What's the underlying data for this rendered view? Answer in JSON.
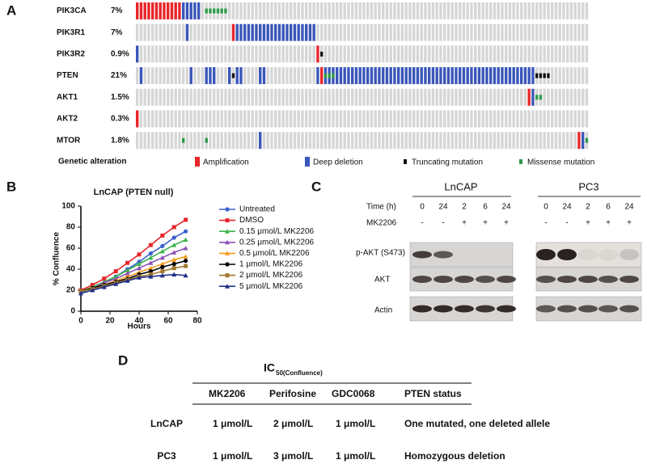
{
  "panel_labels": [
    "A",
    "B",
    "C",
    "D"
  ],
  "oncoprint": {
    "genes": [
      {
        "name": "PIK3CA",
        "percent": "7%"
      },
      {
        "name": "PIK3R1",
        "percent": "7%"
      },
      {
        "name": "PIK3R2",
        "percent": "0.9%"
      },
      {
        "name": "PTEN",
        "percent": "21%"
      },
      {
        "name": "AKT1",
        "percent": "1.5%"
      },
      {
        "name": "AKT2",
        "percent": "0.3%"
      },
      {
        "name": "MTOR",
        "percent": "1.8%"
      }
    ],
    "legend_title": "Genetic alteration",
    "legend": [
      {
        "label": "Amplification",
        "color": "#e8262a"
      },
      {
        "label": "Deep deletion",
        "color": "#3a56b8"
      },
      {
        "label": "Truncating mutation",
        "color": "#111111"
      },
      {
        "label": "Missense mutation",
        "color": "#2e9a4a"
      }
    ]
  },
  "chart_data": {
    "type": "line",
    "title": "LnCAP (PTEN null)",
    "x_label": "Hours",
    "y_label": "% Confluence",
    "x": [
      0,
      8,
      16,
      24,
      32,
      40,
      48,
      56,
      64,
      72
    ],
    "xlim": [
      0,
      80
    ],
    "xticks": [
      0,
      20,
      40,
      60,
      80
    ],
    "ylim": [
      0,
      100
    ],
    "yticks": [
      0,
      20,
      40,
      60,
      80,
      100
    ],
    "series": [
      {
        "name": "Untreated",
        "color": "#3a5fcd",
        "marker": "circle",
        "values": [
          18,
          22,
          27,
          33,
          40,
          47,
          55,
          62,
          70,
          76
        ]
      },
      {
        "name": "DMSO",
        "color": "#e8262a",
        "marker": "square",
        "values": [
          20,
          25,
          31,
          38,
          46,
          54,
          63,
          72,
          80,
          87
        ]
      },
      {
        "name": "0.15 μmol/L MK2206",
        "color": "#3cb34a",
        "marker": "triangle",
        "values": [
          19,
          23,
          28,
          33,
          39,
          45,
          51,
          57,
          63,
          68
        ]
      },
      {
        "name": "0.25 μmol/L MK2206",
        "color": "#8a4fb5",
        "marker": "triangle",
        "values": [
          19,
          22,
          27,
          31,
          36,
          41,
          46,
          51,
          56,
          60
        ]
      },
      {
        "name": "0.5 μmol/L MK2206",
        "color": "#f39c1f",
        "marker": "triangle",
        "values": [
          19,
          22,
          25,
          29,
          33,
          37,
          41,
          45,
          49,
          52
        ]
      },
      {
        "name": "1 μmol/L MK2206",
        "color": "#000000",
        "marker": "circle",
        "values": [
          19,
          22,
          25,
          28,
          31,
          35,
          38,
          42,
          45,
          48
        ]
      },
      {
        "name": "2 μmol/L MK2206",
        "color": "#a0782c",
        "marker": "square",
        "values": [
          19,
          21,
          24,
          27,
          30,
          33,
          35,
          38,
          41,
          43
        ]
      },
      {
        "name": "5 μmol/L MK2206",
        "color": "#1f2f8a",
        "marker": "triangle",
        "values": [
          17,
          20,
          23,
          26,
          29,
          32,
          33,
          34,
          35,
          34
        ]
      }
    ]
  },
  "western_blot": {
    "cell_lines": [
      "LnCAP",
      "PC3"
    ],
    "time_label": "Time (h)",
    "times": [
      "0",
      "24",
      "2",
      "6",
      "24"
    ],
    "treatment_label": "MK2206",
    "treatment": [
      "-",
      "-",
      "+",
      "+",
      "+"
    ],
    "rows": [
      "p-AKT (S473)",
      "AKT",
      "Actin"
    ]
  },
  "table": {
    "title": "IC",
    "title_sub": "50(Confluence)",
    "columns": [
      "MK2206",
      "Perifosine",
      "GDC0068",
      "PTEN status"
    ],
    "rows": [
      {
        "name": "LnCAP",
        "cells": [
          "1 μmol/L",
          "2 μmol/L",
          "1 μmol/L",
          "One mutated, one deleted allele"
        ]
      },
      {
        "name": "PC3",
        "cells": [
          "1 μmol/L",
          "3 μmol/L",
          "1 μmol/L",
          "Homozygous deletion"
        ]
      }
    ]
  }
}
